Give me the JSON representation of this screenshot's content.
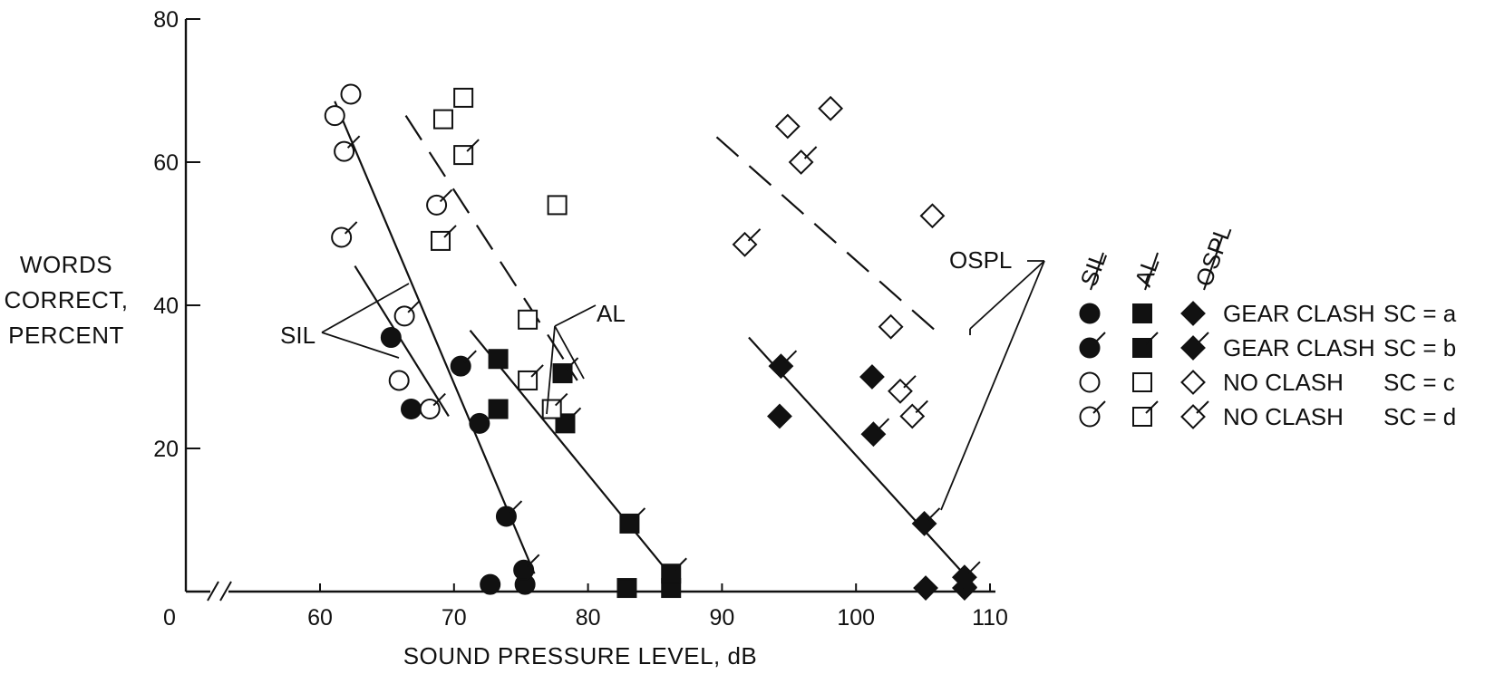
{
  "chart_data": {
    "type": "scatter",
    "title": "",
    "xlabel": "SOUND PRESSURE LEVEL, dB",
    "ylabel_lines": [
      "WORDS",
      "CORRECT,",
      "PERCENT"
    ],
    "xlim": [
      55,
      110
    ],
    "ylim": [
      0,
      80
    ],
    "x_ticks": [
      60,
      70,
      80,
      90,
      100,
      110
    ],
    "y_ticks": [
      20,
      40,
      60,
      80
    ],
    "origin_label": "0",
    "axis_break": true,
    "grid": false,
    "legend_placement": "right",
    "legend": {
      "column_headers": [
        "SIL",
        "AL",
        "OSPL"
      ],
      "rows": [
        {
          "symbol_fill": "filled",
          "flagged": false,
          "label": "GEAR CLASH",
          "sc": "SC = a"
        },
        {
          "symbol_fill": "filled",
          "flagged": true,
          "label": "GEAR CLASH",
          "sc": "SC = b"
        },
        {
          "symbol_fill": "open",
          "flagged": false,
          "label": "NO CLASH",
          "sc": "SC = c"
        },
        {
          "symbol_fill": "open",
          "flagged": true,
          "label": "NO CLASH",
          "sc": "SC = d"
        }
      ]
    },
    "annotations": [
      "SIL",
      "AL",
      "OSPL"
    ],
    "series": [
      {
        "measure": "SIL",
        "marker": "circle",
        "condition": "a",
        "fill": "filled",
        "flag": false,
        "points": [
          [
            65.3,
            35.5
          ],
          [
            66.8,
            25.5
          ],
          [
            71.9,
            23.5
          ],
          [
            72.7,
            1
          ],
          [
            75.3,
            1
          ]
        ]
      },
      {
        "measure": "SIL",
        "marker": "circle",
        "condition": "b",
        "fill": "filled",
        "flag": true,
        "points": [
          [
            70.5,
            31.5
          ],
          [
            73.9,
            10.5
          ],
          [
            75.2,
            3
          ]
        ]
      },
      {
        "measure": "SIL",
        "marker": "circle",
        "condition": "c",
        "fill": "open",
        "flag": false,
        "points": [
          [
            61.1,
            66.5
          ],
          [
            62.3,
            69.5
          ],
          [
            65.9,
            29.5
          ]
        ]
      },
      {
        "measure": "SIL",
        "marker": "circle",
        "condition": "d",
        "fill": "open",
        "flag": true,
        "points": [
          [
            61.8,
            61.5
          ],
          [
            61.6,
            49.5
          ],
          [
            66.3,
            38.5
          ],
          [
            68.7,
            54
          ],
          [
            68.2,
            25.5
          ]
        ]
      },
      {
        "measure": "AL",
        "marker": "square",
        "condition": "a",
        "fill": "filled",
        "flag": false,
        "points": [
          [
            73.3,
            32.5
          ],
          [
            73.3,
            25.5
          ],
          [
            82.9,
            0.5
          ],
          [
            86.2,
            0.5
          ]
        ]
      },
      {
        "measure": "AL",
        "marker": "square",
        "condition": "b",
        "fill": "filled",
        "flag": true,
        "points": [
          [
            78.1,
            30.5
          ],
          [
            78.3,
            23.5
          ],
          [
            83.1,
            9.5
          ],
          [
            86.2,
            2.5
          ]
        ]
      },
      {
        "measure": "AL",
        "marker": "square",
        "condition": "c",
        "fill": "open",
        "flag": false,
        "points": [
          [
            69.2,
            66
          ],
          [
            70.7,
            69
          ],
          [
            77.7,
            54
          ],
          [
            75.5,
            38
          ]
        ]
      },
      {
        "measure": "AL",
        "marker": "square",
        "condition": "d",
        "fill": "open",
        "flag": true,
        "points": [
          [
            70.7,
            61
          ],
          [
            69,
            49
          ],
          [
            75.5,
            29.5
          ],
          [
            77.3,
            25.5
          ]
        ]
      },
      {
        "measure": "OSPL",
        "marker": "diamond",
        "condition": "a",
        "fill": "filled",
        "flag": false,
        "points": [
          [
            94.3,
            24.5
          ],
          [
            101.2,
            30
          ],
          [
            105.2,
            0.5
          ],
          [
            108.1,
            0.5
          ]
        ]
      },
      {
        "measure": "OSPL",
        "marker": "diamond",
        "condition": "b",
        "fill": "filled",
        "flag": true,
        "points": [
          [
            94.4,
            31.5
          ],
          [
            101.3,
            22
          ],
          [
            105.1,
            9.5
          ],
          [
            108.1,
            2
          ]
        ]
      },
      {
        "measure": "OSPL",
        "marker": "diamond",
        "condition": "c",
        "fill": "open",
        "flag": false,
        "points": [
          [
            94.9,
            65
          ],
          [
            98.1,
            67.5
          ],
          [
            105.7,
            52.5
          ],
          [
            102.6,
            37
          ]
        ]
      },
      {
        "measure": "OSPL",
        "marker": "diamond",
        "condition": "d",
        "fill": "open",
        "flag": true,
        "points": [
          [
            91.7,
            48.5
          ],
          [
            95.9,
            60
          ],
          [
            103.3,
            28
          ],
          [
            104.2,
            24.5
          ]
        ]
      }
    ],
    "fit_lines": [
      {
        "measure": "SIL",
        "style": "solid",
        "from": [
          61.1,
          68.5
        ],
        "to": [
          76.0,
          2.5
        ]
      },
      {
        "measure": "SIL",
        "style": "solid",
        "from": [
          62.6,
          45.5
        ],
        "to": [
          69.6,
          24.5
        ]
      },
      {
        "measure": "AL",
        "style": "solid",
        "from": [
          71.2,
          36.5
        ],
        "to": [
          86.5,
          1.5
        ]
      },
      {
        "measure": "AL",
        "style": "dashed",
        "from": [
          66.4,
          66.5
        ],
        "to": [
          79.2,
          29.5
        ]
      },
      {
        "measure": "OSPL",
        "style": "solid",
        "from": [
          92.0,
          35.5
        ],
        "to": [
          109.0,
          0.5
        ]
      },
      {
        "measure": "OSPL",
        "style": "dashed",
        "from": [
          89.6,
          63.5
        ],
        "to": [
          105.9,
          36.5
        ]
      }
    ]
  }
}
